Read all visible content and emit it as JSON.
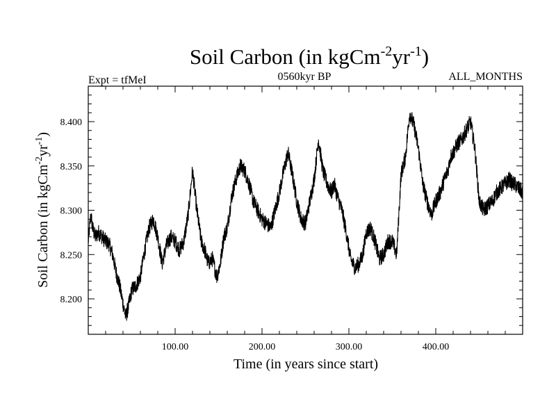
{
  "chart_data": {
    "type": "line",
    "title_main": "Soil Carbon (in kgCm",
    "title_sup1": "-2",
    "title_mid": "yr",
    "title_sup2": "-1",
    "title_end": ")",
    "subtitle_left": "Expt = tfMeI",
    "subtitle_center": "0560kyr BP",
    "subtitle_right": "ALL_MONTHS",
    "xlabel": "Time (in years since start)",
    "ylabel_main": "Soil Carbon (in kgCm",
    "ylabel_sup1": "-2",
    "ylabel_mid": "yr",
    "ylabel_sup2": "-1",
    "ylabel_end": ")",
    "xlim": [
      0,
      500
    ],
    "ylim": [
      8.16,
      8.44
    ],
    "x_ticks": [
      100,
      200,
      300,
      400
    ],
    "x_tick_labels": [
      "100.00",
      "200.00",
      "300.00",
      "400.00"
    ],
    "y_ticks": [
      8.2,
      8.25,
      8.3,
      8.35,
      8.4
    ],
    "y_tick_labels": [
      "8.200",
      "8.250",
      "8.300",
      "8.350",
      "8.400"
    ],
    "grid": false,
    "line_color": "#000000",
    "series": [
      {
        "x": [
          0,
          3,
          5,
          8,
          12,
          16,
          20,
          24,
          28,
          32,
          36,
          40,
          43,
          46,
          50,
          55,
          60,
          65,
          70,
          75,
          80,
          85,
          90,
          95,
          100,
          105,
          110,
          115,
          120,
          125,
          130,
          134,
          138,
          143,
          148,
          152,
          156,
          160,
          165,
          170,
          175,
          180,
          185,
          190,
          195,
          200,
          205,
          210,
          215,
          220,
          225,
          230,
          235,
          240,
          245,
          250,
          255,
          260,
          265,
          270,
          275,
          280,
          283,
          287,
          292,
          297,
          302,
          307,
          312,
          316,
          320,
          325,
          330,
          335,
          340,
          345,
          350,
          355,
          360,
          365,
          370,
          375,
          380,
          385,
          390,
          395,
          400,
          405,
          410,
          414,
          417,
          420,
          425,
          430,
          435,
          440,
          445,
          450,
          455,
          460,
          465,
          470,
          475,
          480,
          485,
          488,
          490,
          495,
          500
        ],
        "y": [
          8.265,
          8.295,
          8.28,
          8.27,
          8.275,
          8.27,
          8.265,
          8.262,
          8.25,
          8.23,
          8.215,
          8.195,
          8.18,
          8.19,
          8.21,
          8.215,
          8.225,
          8.255,
          8.28,
          8.29,
          8.27,
          8.24,
          8.26,
          8.27,
          8.265,
          8.255,
          8.265,
          8.295,
          8.345,
          8.3,
          8.265,
          8.255,
          8.24,
          8.245,
          8.225,
          8.24,
          8.27,
          8.28,
          8.315,
          8.335,
          8.35,
          8.345,
          8.33,
          8.31,
          8.3,
          8.29,
          8.285,
          8.28,
          8.3,
          8.32,
          8.345,
          8.365,
          8.34,
          8.31,
          8.29,
          8.285,
          8.31,
          8.335,
          8.38,
          8.345,
          8.33,
          8.32,
          8.33,
          8.315,
          8.3,
          8.275,
          8.245,
          8.235,
          8.24,
          8.25,
          8.275,
          8.28,
          8.265,
          8.245,
          8.25,
          8.265,
          8.265,
          8.25,
          8.34,
          8.36,
          8.41,
          8.395,
          8.37,
          8.33,
          8.31,
          8.295,
          8.31,
          8.32,
          8.335,
          8.345,
          8.36,
          8.365,
          8.375,
          8.38,
          8.39,
          8.4,
          8.37,
          8.31,
          8.3,
          8.305,
          8.31,
          8.32,
          8.325,
          8.33,
          8.335,
          8.33,
          8.33,
          8.325,
          8.32
        ]
      }
    ]
  }
}
